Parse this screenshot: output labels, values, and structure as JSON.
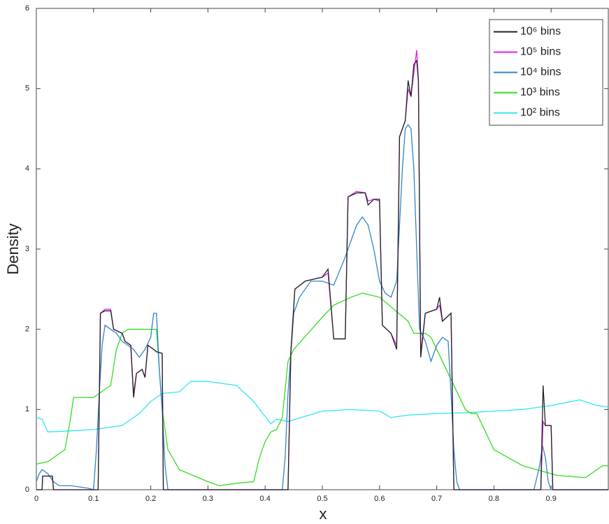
{
  "chart_data": {
    "type": "line",
    "x_label": "x",
    "y_label": "Density",
    "xlim": [
      0,
      1
    ],
    "ylim": [
      0,
      6
    ],
    "xticks": [
      0,
      0.1,
      0.2,
      0.3,
      0.4,
      0.5,
      0.6,
      0.7,
      0.8,
      0.9
    ],
    "yticks": [
      0,
      1,
      2,
      3,
      4,
      5,
      6
    ],
    "legend": "top-right",
    "grid": false,
    "series": [
      {
        "name": "10⁶ bins",
        "color": "#222222",
        "x": [
          0,
          0.01,
          0.011,
          0.028,
          0.03,
          0.108,
          0.112,
          0.12,
          0.13,
          0.135,
          0.15,
          0.155,
          0.165,
          0.17,
          0.175,
          0.185,
          0.19,
          0.195,
          0.205,
          0.21,
          0.22,
          0.222,
          0.44,
          0.445,
          0.452,
          0.47,
          0.5,
          0.51,
          0.52,
          0.54,
          0.545,
          0.56,
          0.575,
          0.58,
          0.59,
          0.6,
          0.605,
          0.62,
          0.63,
          0.635,
          0.645,
          0.65,
          0.655,
          0.66,
          0.665,
          0.668,
          0.672,
          0.68,
          0.7,
          0.705,
          0.71,
          0.725,
          0.73,
          0.882,
          0.886,
          0.89,
          0.9,
          0.903,
          1.0
        ],
        "values": [
          0,
          0,
          0.17,
          0.17,
          0,
          0,
          2.2,
          2.23,
          2.23,
          2.0,
          1.95,
          1.85,
          1.8,
          1.15,
          1.45,
          1.5,
          1.4,
          1.8,
          1.75,
          1.72,
          1.7,
          0,
          0,
          1.72,
          2.5,
          2.6,
          2.65,
          2.75,
          1.88,
          1.88,
          3.65,
          3.7,
          3.7,
          3.55,
          3.62,
          3.62,
          2.05,
          1.95,
          1.75,
          4.4,
          4.6,
          5.1,
          4.9,
          5.3,
          5.35,
          5.1,
          1.65,
          2.2,
          2.25,
          2.4,
          2.1,
          2.2,
          0,
          0,
          1.3,
          0.8,
          0.8,
          0,
          0
        ]
      },
      {
        "name": "10⁵ bins",
        "color": "#e020e0",
        "x": [
          0,
          0.01,
          0.011,
          0.028,
          0.03,
          0.108,
          0.112,
          0.12,
          0.13,
          0.135,
          0.15,
          0.155,
          0.165,
          0.17,
          0.175,
          0.185,
          0.19,
          0.195,
          0.205,
          0.21,
          0.22,
          0.222,
          0.44,
          0.445,
          0.452,
          0.47,
          0.5,
          0.51,
          0.52,
          0.54,
          0.545,
          0.56,
          0.575,
          0.58,
          0.59,
          0.6,
          0.605,
          0.62,
          0.63,
          0.635,
          0.645,
          0.65,
          0.655,
          0.66,
          0.665,
          0.668,
          0.672,
          0.68,
          0.7,
          0.705,
          0.71,
          0.725,
          0.73,
          0.882,
          0.886,
          0.89,
          0.9,
          0.903,
          1.0
        ],
        "values": [
          0,
          0,
          0.17,
          0.17,
          0,
          0,
          2.2,
          2.25,
          2.25,
          2.0,
          1.95,
          1.85,
          1.8,
          1.2,
          1.45,
          1.5,
          1.4,
          1.8,
          1.75,
          1.72,
          1.7,
          0,
          0,
          1.72,
          2.5,
          2.6,
          2.65,
          2.7,
          1.88,
          1.88,
          3.65,
          3.72,
          3.7,
          3.6,
          3.62,
          3.6,
          2.05,
          1.95,
          1.8,
          4.4,
          4.6,
          5.0,
          4.9,
          5.2,
          5.48,
          5.1,
          1.7,
          2.2,
          2.25,
          2.3,
          2.1,
          2.2,
          0,
          0,
          0.85,
          0.8,
          0.8,
          0,
          0
        ]
      },
      {
        "name": "10⁴ bins",
        "color": "#2f86c8",
        "x": [
          0,
          0.005,
          0.01,
          0.02,
          0.03,
          0.04,
          0.06,
          0.09,
          0.1,
          0.105,
          0.11,
          0.115,
          0.12,
          0.13,
          0.14,
          0.15,
          0.16,
          0.17,
          0.18,
          0.19,
          0.2,
          0.205,
          0.21,
          0.215,
          0.22,
          0.225,
          0.23,
          0.43,
          0.435,
          0.44,
          0.45,
          0.46,
          0.48,
          0.5,
          0.52,
          0.54,
          0.55,
          0.56,
          0.57,
          0.58,
          0.59,
          0.6,
          0.61,
          0.62,
          0.63,
          0.64,
          0.645,
          0.65,
          0.655,
          0.66,
          0.665,
          0.67,
          0.68,
          0.69,
          0.7,
          0.71,
          0.72,
          0.725,
          0.73,
          0.735,
          0.74,
          0.87,
          0.88,
          0.885,
          0.89,
          0.895,
          0.9,
          1.0
        ],
        "values": [
          0.1,
          0.2,
          0.25,
          0.2,
          0.1,
          0.05,
          0.05,
          0.02,
          0,
          0.5,
          1.2,
          1.8,
          2.05,
          2.0,
          1.95,
          1.85,
          1.8,
          1.75,
          1.65,
          1.75,
          1.9,
          2.2,
          2.2,
          1.5,
          1.0,
          0.3,
          0,
          0,
          0.4,
          1.2,
          2.2,
          2.4,
          2.6,
          2.6,
          2.55,
          2.9,
          3.1,
          3.3,
          3.4,
          3.3,
          3.0,
          2.6,
          2.45,
          2.4,
          2.6,
          4.0,
          4.5,
          4.55,
          4.5,
          4.0,
          3.0,
          2.0,
          1.85,
          1.6,
          1.8,
          1.9,
          1.85,
          1.2,
          0.5,
          0.1,
          0,
          0,
          0.3,
          0.55,
          0.4,
          0.1,
          0,
          0
        ]
      },
      {
        "name": "10³ bins",
        "color": "#33dd22",
        "x": [
          0,
          0.02,
          0.04,
          0.05,
          0.06,
          0.065,
          0.08,
          0.1,
          0.13,
          0.14,
          0.15,
          0.16,
          0.17,
          0.21,
          0.215,
          0.22,
          0.23,
          0.25,
          0.3,
          0.32,
          0.35,
          0.38,
          0.39,
          0.4,
          0.41,
          0.42,
          0.43,
          0.44,
          0.45,
          0.5,
          0.52,
          0.55,
          0.57,
          0.6,
          0.65,
          0.66,
          0.68,
          0.69,
          0.7,
          0.75,
          0.76,
          0.77,
          0.8,
          0.85,
          0.9,
          0.91,
          0.96,
          0.99,
          1.0
        ],
        "values": [
          0.32,
          0.35,
          0.45,
          0.5,
          0.9,
          1.15,
          1.15,
          1.15,
          1.3,
          1.75,
          1.95,
          2.0,
          2.0,
          2.0,
          1.5,
          1.0,
          0.5,
          0.25,
          0.1,
          0.05,
          0.08,
          0.1,
          0.4,
          0.6,
          0.72,
          0.75,
          0.9,
          1.6,
          1.75,
          2.15,
          2.3,
          2.4,
          2.45,
          2.4,
          2.1,
          1.95,
          1.95,
          1.9,
          1.75,
          1.0,
          0.95,
          0.95,
          0.5,
          0.3,
          0.2,
          0.18,
          0.15,
          0.3,
          0.3
        ]
      },
      {
        "name": "10² bins",
        "color": "#33e6f0",
        "x": [
          0,
          0.01,
          0.02,
          0.05,
          0.1,
          0.15,
          0.18,
          0.2,
          0.22,
          0.25,
          0.27,
          0.3,
          0.35,
          0.38,
          0.41,
          0.42,
          0.44,
          0.5,
          0.55,
          0.6,
          0.62,
          0.65,
          0.7,
          0.75,
          0.8,
          0.85,
          0.9,
          0.95,
          0.98,
          1.0
        ],
        "values": [
          0.9,
          0.88,
          0.72,
          0.73,
          0.75,
          0.8,
          0.95,
          1.1,
          1.2,
          1.22,
          1.35,
          1.35,
          1.3,
          1.1,
          0.82,
          0.88,
          0.85,
          0.98,
          1.0,
          0.98,
          0.9,
          0.93,
          0.95,
          0.96,
          0.98,
          1.0,
          1.05,
          1.12,
          1.05,
          1.03
        ]
      }
    ]
  }
}
